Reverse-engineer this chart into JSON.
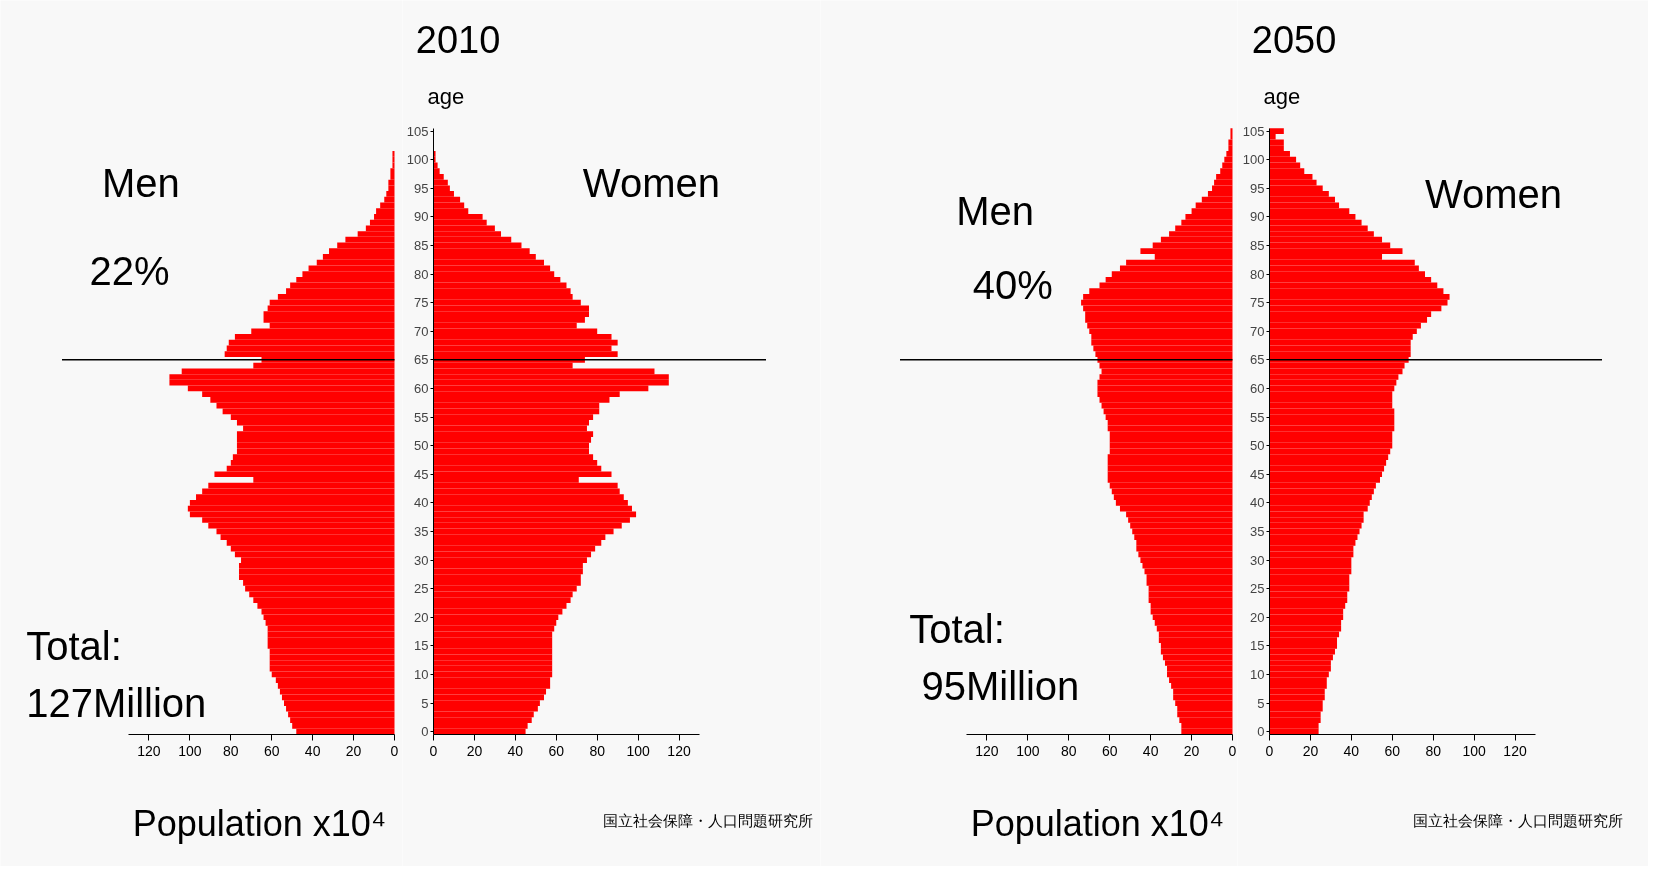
{
  "chart_data": [
    {
      "type": "bar",
      "orientation": "horizontal",
      "tick_labels": "x",
      "xlabel": "Population x10⁴",
      "xlim": [
        130,
        0
      ],
      "xticks": [
        120,
        100,
        80,
        60,
        40,
        20,
        0
      ],
      "categories": [
        "105",
        null,
        null,
        null,
        null,
        "100",
        null,
        null,
        null,
        null,
        "95",
        null,
        null,
        null,
        null,
        "90",
        null,
        null,
        null,
        null,
        "85",
        null,
        null,
        null,
        null,
        "80",
        null,
        null,
        null,
        null,
        "75",
        null,
        null,
        null,
        null,
        "70",
        null,
        null,
        null,
        null,
        "65",
        null,
        null,
        null,
        null,
        "60",
        null,
        null,
        null,
        null,
        "55",
        null,
        null,
        null,
        null,
        "50",
        null,
        null,
        null,
        null,
        "45",
        null,
        null,
        null,
        null,
        "40",
        null,
        null,
        null,
        null,
        "35",
        null,
        null,
        null,
        null,
        "30",
        null,
        null,
        null,
        null,
        "25",
        null,
        null,
        null,
        null,
        "20",
        null,
        null,
        null,
        null,
        "15",
        null,
        null,
        null,
        null,
        "10",
        null,
        null,
        null,
        null,
        "5",
        null,
        null,
        null,
        null,
        "0"
      ],
      "series": [
        {
          "color": "#ff0000",
          "values": [
            0,
            0,
            0,
            0,
            1,
            1,
            1,
            2,
            2,
            3,
            3,
            4,
            5,
            7,
            9,
            10,
            12,
            14,
            18,
            24,
            28,
            32,
            35,
            38,
            42,
            45,
            48,
            51,
            53,
            57,
            61,
            62,
            64,
            64,
            61,
            70,
            78,
            81,
            82,
            83,
            65,
            69,
            104,
            110,
            110,
            101,
            94,
            90,
            87,
            84,
            80,
            77,
            74,
            77,
            77,
            77,
            77,
            79,
            80,
            82,
            88,
            69,
            91,
            94,
            97,
            100,
            101,
            100,
            94,
            91,
            87,
            85,
            82,
            80,
            78,
            75,
            76,
            76,
            76,
            74,
            73,
            71,
            69,
            67,
            65,
            64,
            63,
            62,
            62,
            62,
            62,
            61,
            61,
            61,
            61,
            60,
            58,
            57,
            56,
            55,
            54,
            53,
            52,
            51,
            50,
            48
          ]
        }
      ],
      "annotations": [
        "Men",
        "22%",
        "Total:",
        "127Million"
      ],
      "ref_lines": [
        {
          "axis": "y",
          "value": "65",
          "color": "#000000"
        }
      ]
    },
    {
      "type": "bar",
      "orientation": "horizontal",
      "title": "2010",
      "ylabel": "age",
      "xlim": [
        0,
        130
      ],
      "xticks": [
        0,
        20,
        40,
        60,
        80,
        100,
        120
      ],
      "categories": [
        "105",
        null,
        null,
        null,
        null,
        "100",
        null,
        null,
        null,
        null,
        "95",
        null,
        null,
        null,
        null,
        "90",
        null,
        null,
        null,
        null,
        "85",
        null,
        null,
        null,
        null,
        "80",
        null,
        null,
        null,
        null,
        "75",
        null,
        null,
        null,
        null,
        "70",
        null,
        null,
        null,
        null,
        "65",
        null,
        null,
        null,
        null,
        "60",
        null,
        null,
        null,
        null,
        "55",
        null,
        null,
        null,
        null,
        "50",
        null,
        null,
        null,
        null,
        "45",
        null,
        null,
        null,
        null,
        "40",
        null,
        null,
        null,
        null,
        "35",
        null,
        null,
        null,
        null,
        "30",
        null,
        null,
        null,
        null,
        "25",
        null,
        null,
        null,
        null,
        "20",
        null,
        null,
        null,
        null,
        "15",
        null,
        null,
        null,
        null,
        "10",
        null,
        null,
        null,
        null,
        "5",
        null,
        null,
        null,
        null,
        "0"
      ],
      "series": [
        {
          "color": "#ff0000",
          "values": [
            0,
            0,
            0,
            0,
            1,
            1,
            2,
            3,
            5,
            7,
            8,
            10,
            13,
            15,
            17,
            24,
            26,
            30,
            33,
            38,
            43,
            47,
            50,
            54,
            57,
            59,
            62,
            65,
            67,
            68,
            72,
            76,
            76,
            74,
            70,
            80,
            87,
            90,
            87,
            90,
            74,
            68,
            108,
            115,
            115,
            105,
            91,
            86,
            81,
            81,
            78,
            76,
            75,
            78,
            77,
            76,
            76,
            78,
            80,
            82,
            87,
            71,
            90,
            91,
            93,
            95,
            97,
            99,
            96,
            92,
            88,
            84,
            82,
            79,
            77,
            75,
            73,
            73,
            72,
            72,
            70,
            68,
            67,
            65,
            63,
            61,
            60,
            59,
            58,
            58,
            58,
            58,
            58,
            58,
            58,
            58,
            57,
            57,
            55,
            54,
            52,
            51,
            49,
            48,
            46,
            45
          ]
        }
      ],
      "annotations": [
        "Women",
        "国立社会保障・人口問題研究所"
      ],
      "ref_lines": [
        {
          "axis": "y",
          "value": "65",
          "color": "#000000"
        }
      ]
    },
    {
      "type": "bar",
      "orientation": "horizontal",
      "tick_labels": "x",
      "xlabel": "Population x10⁴",
      "xlim": [
        130,
        0
      ],
      "xticks": [
        120,
        100,
        80,
        60,
        40,
        20,
        0
      ],
      "categories": [
        "105",
        null,
        null,
        null,
        null,
        "100",
        null,
        null,
        null,
        null,
        "95",
        null,
        null,
        null,
        null,
        "90",
        null,
        null,
        null,
        null,
        "85",
        null,
        null,
        null,
        null,
        "80",
        null,
        null,
        null,
        null,
        "75",
        null,
        null,
        null,
        null,
        "70",
        null,
        null,
        null,
        null,
        "65",
        null,
        null,
        null,
        null,
        "60",
        null,
        null,
        null,
        null,
        "55",
        null,
        null,
        null,
        null,
        "50",
        null,
        null,
        null,
        null,
        "45",
        null,
        null,
        null,
        null,
        "40",
        null,
        null,
        null,
        null,
        "35",
        null,
        null,
        null,
        null,
        "30",
        null,
        null,
        null,
        null,
        "25",
        null,
        null,
        null,
        null,
        "20",
        null,
        null,
        null,
        null,
        "15",
        null,
        null,
        null,
        null,
        "10",
        null,
        null,
        null,
        null,
        "5",
        null,
        null,
        null,
        null,
        "0"
      ],
      "series": [
        {
          "color": "#ff0000",
          "values": [
            1,
            1,
            2,
            2,
            3,
            4,
            5,
            6,
            8,
            9,
            10,
            12,
            15,
            18,
            20,
            23,
            25,
            28,
            31,
            35,
            39,
            45,
            38,
            52,
            55,
            59,
            62,
            65,
            70,
            73,
            74,
            73,
            72,
            72,
            71,
            70,
            69,
            69,
            68,
            67,
            66,
            65,
            64,
            65,
            66,
            66,
            66,
            65,
            64,
            63,
            62,
            61,
            61,
            60,
            60,
            60,
            60,
            61,
            61,
            61,
            61,
            61,
            60,
            59,
            58,
            57,
            55,
            52,
            51,
            50,
            49,
            48,
            47,
            47,
            46,
            45,
            44,
            43,
            42,
            42,
            41,
            41,
            41,
            40,
            40,
            39,
            38,
            37,
            36,
            36,
            35,
            35,
            34,
            33,
            32,
            32,
            31,
            30,
            29,
            29,
            28,
            27,
            27,
            26,
            25,
            25
          ]
        }
      ],
      "annotations": [
        "Men",
        "40%",
        "Total:",
        "95Million"
      ],
      "ref_lines": [
        {
          "axis": "y",
          "value": "65",
          "color": "#000000"
        }
      ]
    },
    {
      "type": "bar",
      "orientation": "horizontal",
      "title": "2050",
      "ylabel": "age",
      "xlim": [
        0,
        130
      ],
      "xticks": [
        0,
        20,
        40,
        60,
        80,
        100,
        120
      ],
      "categories": [
        "105",
        null,
        null,
        null,
        null,
        "100",
        null,
        null,
        null,
        null,
        "95",
        null,
        null,
        null,
        null,
        "90",
        null,
        null,
        null,
        null,
        "85",
        null,
        null,
        null,
        null,
        "80",
        null,
        null,
        null,
        null,
        "75",
        null,
        null,
        null,
        null,
        "70",
        null,
        null,
        null,
        null,
        "65",
        null,
        null,
        null,
        null,
        "60",
        null,
        null,
        null,
        null,
        "55",
        null,
        null,
        null,
        null,
        "50",
        null,
        null,
        null,
        null,
        "45",
        null,
        null,
        null,
        null,
        "40",
        null,
        null,
        null,
        null,
        "35",
        null,
        null,
        null,
        null,
        "30",
        null,
        null,
        null,
        null,
        "25",
        null,
        null,
        null,
        null,
        "20",
        null,
        null,
        null,
        null,
        "15",
        null,
        null,
        null,
        null,
        "10",
        null,
        null,
        null,
        null,
        "5",
        null,
        null,
        null,
        null,
        "0"
      ],
      "series": [
        {
          "color": "#ff0000",
          "values": [
            7,
            3,
            7,
            7,
            10,
            13,
            15,
            17,
            21,
            23,
            26,
            29,
            32,
            34,
            39,
            42,
            45,
            48,
            51,
            55,
            59,
            65,
            55,
            71,
            73,
            76,
            79,
            82,
            85,
            88,
            87,
            84,
            79,
            77,
            74,
            72,
            70,
            69,
            69,
            69,
            68,
            66,
            65,
            63,
            62,
            61,
            60,
            60,
            60,
            61,
            61,
            61,
            61,
            60,
            60,
            60,
            59,
            58,
            57,
            56,
            55,
            54,
            52,
            51,
            50,
            49,
            48,
            46,
            46,
            45,
            44,
            43,
            42,
            41,
            41,
            40,
            40,
            40,
            39,
            39,
            39,
            38,
            38,
            37,
            36,
            36,
            35,
            35,
            34,
            33,
            33,
            32,
            31,
            30,
            30,
            29,
            28,
            28,
            27,
            27,
            26,
            26,
            25,
            25,
            24,
            24
          ]
        }
      ],
      "annotations": [
        "Women",
        "国立社会保障・人口問題研究所"
      ],
      "ref_lines": [
        {
          "axis": "y",
          "value": "65",
          "color": "#000000"
        }
      ]
    }
  ]
}
